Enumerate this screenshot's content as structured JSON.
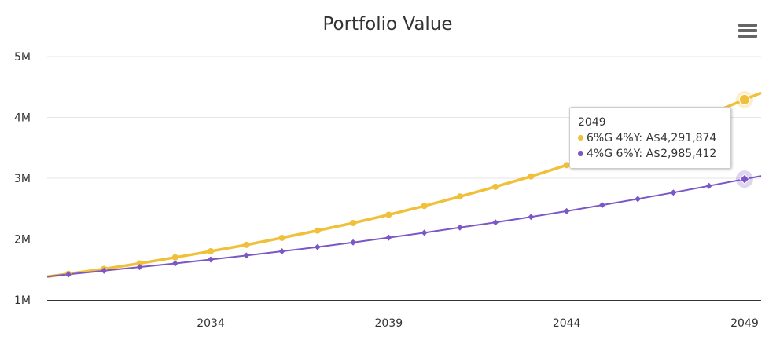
{
  "chart_data": {
    "type": "line",
    "title": "Portfolio Value",
    "xlabel": "",
    "ylabel": "",
    "x": [
      2030,
      2031,
      2032,
      2033,
      2034,
      2035,
      2036,
      2037,
      2038,
      2039,
      2040,
      2041,
      2042,
      2043,
      2044,
      2045,
      2046,
      2047,
      2048,
      2049
    ],
    "x_ticks": [
      "2034",
      "2039",
      "2044",
      "2049"
    ],
    "y_ticks": [
      "1M",
      "2M",
      "3M",
      "4M",
      "5M"
    ],
    "ylim": [
      1000000,
      5000000
    ],
    "grid": true,
    "legend": "none",
    "series": [
      {
        "name": "6%G 4%Y",
        "color": "#f0c03a",
        "marker": "circle",
        "values": [
          1430000,
          1510000,
          1600000,
          1700000,
          1800000,
          1905000,
          2020000,
          2140000,
          2265000,
          2400000,
          2545000,
          2700000,
          2860000,
          3030000,
          3215000,
          3405000,
          3610000,
          3825000,
          4050000,
          4291874
        ]
      },
      {
        "name": "4%G 6%Y",
        "color": "#7b57c6",
        "marker": "diamond",
        "values": [
          1420000,
          1480000,
          1540000,
          1600000,
          1665000,
          1730000,
          1800000,
          1870000,
          1945000,
          2025000,
          2105000,
          2190000,
          2275000,
          2365000,
          2460000,
          2560000,
          2660000,
          2765000,
          2875000,
          2985412
        ]
      }
    ],
    "tooltip": {
      "header": "2049",
      "lines": [
        "6%G 4%Y: A$4,291,874",
        "4%G 6%Y: A$2,985,412"
      ]
    }
  },
  "colors": {
    "grid": "#e6e6e6",
    "axis": "#333333"
  },
  "icons": {
    "menu": "hamburger-menu-icon"
  }
}
